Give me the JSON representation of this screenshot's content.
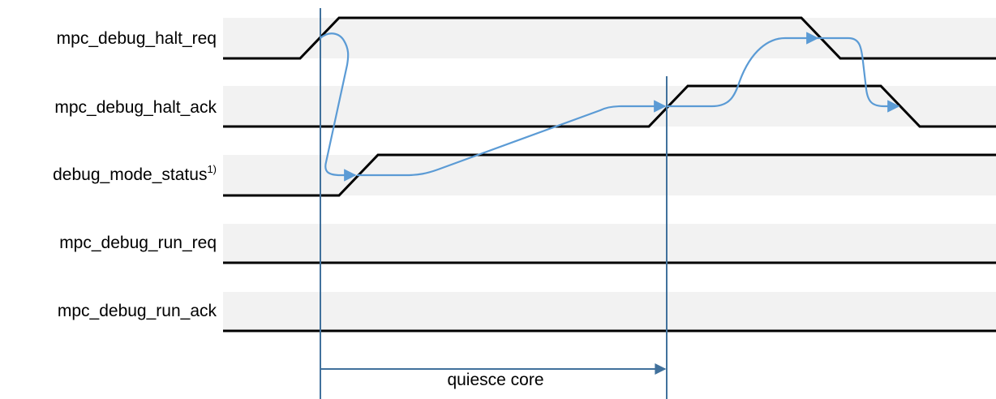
{
  "signals": [
    {
      "name": "mpc_debug_halt_req",
      "note": ""
    },
    {
      "name": "mpc_debug_halt_ack",
      "note": ""
    },
    {
      "name": "debug_mode_status",
      "note": "1)"
    },
    {
      "name": "mpc_debug_run_req",
      "note": ""
    },
    {
      "name": "mpc_debug_run_ack",
      "note": ""
    }
  ],
  "interval_label": "quiesce core",
  "colors": {
    "lane_band": "#f2f2f2",
    "waveform": "#000000",
    "causality_arrow": "#5b9bd5",
    "marker_line": "#41719c"
  }
}
